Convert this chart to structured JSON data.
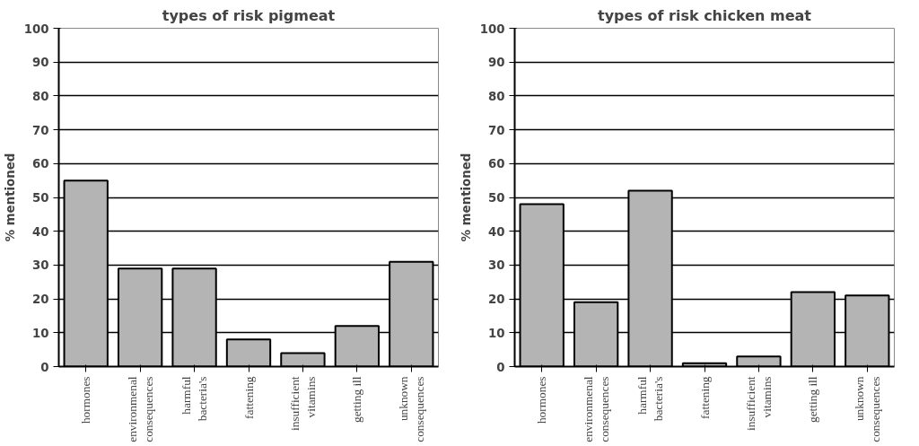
{
  "chart_data": [
    {
      "type": "bar",
      "title": "types of risk pigmeat",
      "ylabel": "% mentioned",
      "categories": [
        "hormones",
        "environmenal\nconsequences",
        "harmful\nbacteria's",
        "fattening",
        "insufficient\nvitamins",
        "getting ill",
        "unknown\nconsequences"
      ],
      "values": [
        55,
        29,
        29,
        8,
        4,
        12,
        31
      ],
      "color": "#b4b4b4",
      "ylim": [
        0,
        100
      ],
      "yticks": [
        0,
        10,
        20,
        30,
        40,
        50,
        60,
        70,
        80,
        90,
        100
      ],
      "grid": "y"
    },
    {
      "type": "bar",
      "title": "types of risk chicken meat",
      "ylabel": "% mentioned",
      "categories": [
        "hormones",
        "environmenal\nconsequences",
        "harmful\nbacteria's",
        "fattening",
        "insufficient\nvitamins",
        "getting ill",
        "unknown\nconsequences"
      ],
      "values": [
        48,
        19,
        52,
        1,
        3,
        22,
        21
      ],
      "color": "#b4b4b4",
      "ylim": [
        0,
        100
      ],
      "yticks": [
        0,
        10,
        20,
        30,
        40,
        50,
        60,
        70,
        80,
        90,
        100
      ],
      "grid": "y"
    }
  ]
}
